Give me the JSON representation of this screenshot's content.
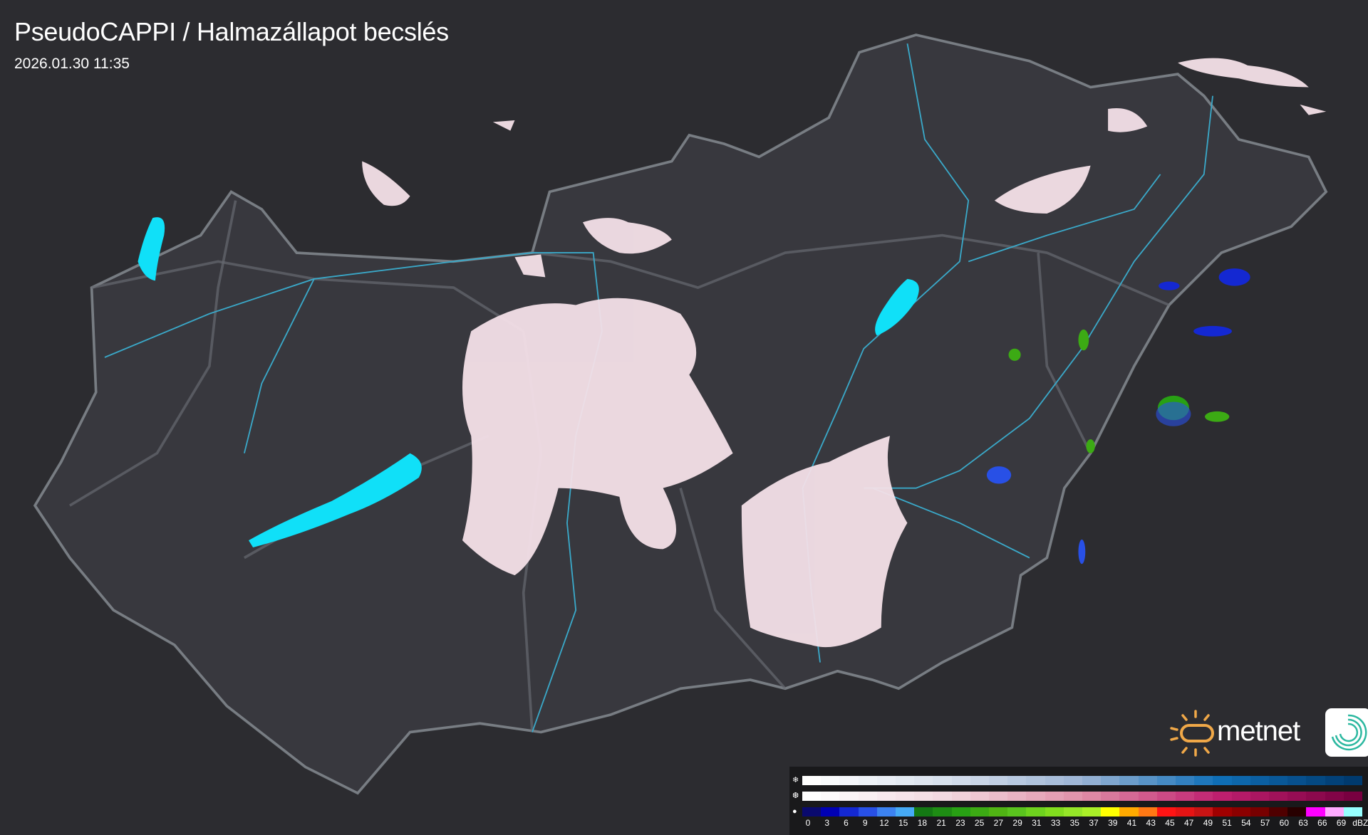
{
  "header": {
    "title": "PseudoCAPPI  / Halmazállapot becslés",
    "timestamp": "2026.01.30 11:35"
  },
  "logo": {
    "brand": "metnet"
  },
  "legend": {
    "rows": [
      {
        "icon": "snowflake-icon",
        "glyph": "❄",
        "stops": [
          "#ffffff",
          "#d7e0ec",
          "#9cb4d4",
          "#1070b8",
          "#003a6e"
        ]
      },
      {
        "icon": "mixed-precip-icon",
        "glyph": "❆",
        "stops": [
          "#ffffff",
          "#f2d8e0",
          "#e090a8",
          "#c02070",
          "#780040"
        ]
      },
      {
        "icon": "raindrop-icon",
        "glyph": "💧",
        "colors": [
          "#0a0a6e",
          "#0000b4",
          "#1428d2",
          "#2850e6",
          "#3c82f0",
          "#46aaf5",
          "#147814",
          "#1e8c14",
          "#28a014",
          "#3caa14",
          "#50b414",
          "#5ac31e",
          "#6ed21e",
          "#82dc1e",
          "#96e628",
          "#aaf028",
          "#ffff00",
          "#ffaa00",
          "#ff7814",
          "#ff1414",
          "#e61414",
          "#c81414",
          "#a00000",
          "#8c0000",
          "#780000",
          "#500000",
          "#280000",
          "#ff00ff",
          "#ffaaff",
          "#96ffff"
        ]
      }
    ],
    "labels": [
      "0",
      "3",
      "6",
      "9",
      "12",
      "15",
      "18",
      "21",
      "23",
      "25",
      "27",
      "29",
      "31",
      "33",
      "35",
      "37",
      "39",
      "41",
      "43",
      "45",
      "47",
      "49",
      "51",
      "54",
      "57",
      "60",
      "63",
      "66",
      "69",
      "dBZ"
    ]
  },
  "colors": {
    "background": "#2c2c30",
    "country": "#3a3a40",
    "border": "#8a9096",
    "rivers": "#3aa8c8",
    "lakes": "#10e0f8",
    "snow_echo": "#f4e0e8"
  }
}
